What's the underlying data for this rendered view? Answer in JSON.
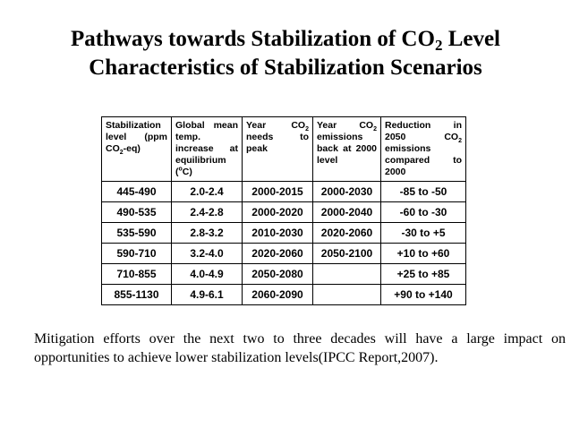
{
  "title": {
    "line1": [
      {
        "text": "Pathways towards Stabilization of CO"
      },
      {
        "text": "2",
        "style": "sub"
      },
      {
        "text": " Level"
      }
    ],
    "line2": [
      {
        "text": "Characteristics of Stabilization Scenarios"
      }
    ]
  },
  "table": {
    "header": [
      [
        {
          "text": "Stabilization level (ppm CO"
        },
        {
          "text": "2",
          "style": "sub"
        },
        {
          "text": "-eq)"
        }
      ],
      [
        {
          "text": "Global mean temp. increase at equilibrium ("
        },
        {
          "text": "o",
          "style": "sup"
        },
        {
          "text": "C)"
        }
      ],
      [
        {
          "text": "Year CO"
        },
        {
          "text": "2",
          "style": "sub"
        },
        {
          "text": " needs to peak"
        }
      ],
      [
        {
          "text": "Year CO"
        },
        {
          "text": "2",
          "style": "sub"
        },
        {
          "text": " emissions back at 2000 level"
        }
      ],
      [
        {
          "text": "Reduction in 2050 CO"
        },
        {
          "text": "2",
          "style": "sub"
        },
        {
          "text": " emissions compared to 2000"
        }
      ]
    ],
    "rows": [
      [
        "445-490",
        "2.0-2.4",
        "2000-2015",
        "2000-2030",
        "-85 to -50"
      ],
      [
        "490-535",
        "2.4-2.8",
        "2000-2020",
        "2000-2040",
        "-60 to -30"
      ],
      [
        "535-590",
        "2.8-3.2",
        "2010-2030",
        "2020-2060",
        "-30 to +5"
      ],
      [
        "590-710",
        "3.2-4.0",
        "2020-2060",
        "2050-2100",
        "+10 to +60"
      ],
      [
        "710-855",
        "4.0-4.9",
        "2050-2080",
        null,
        "+25 to +85"
      ],
      [
        "855-1130",
        "4.9-6.1",
        "2060-2090",
        null,
        "+90 to +140"
      ]
    ]
  },
  "footnote": "Mitigation efforts over the next two to three decades will have a large impact on opportunities to achieve lower stabilization levels(IPCC Report,2007)."
}
